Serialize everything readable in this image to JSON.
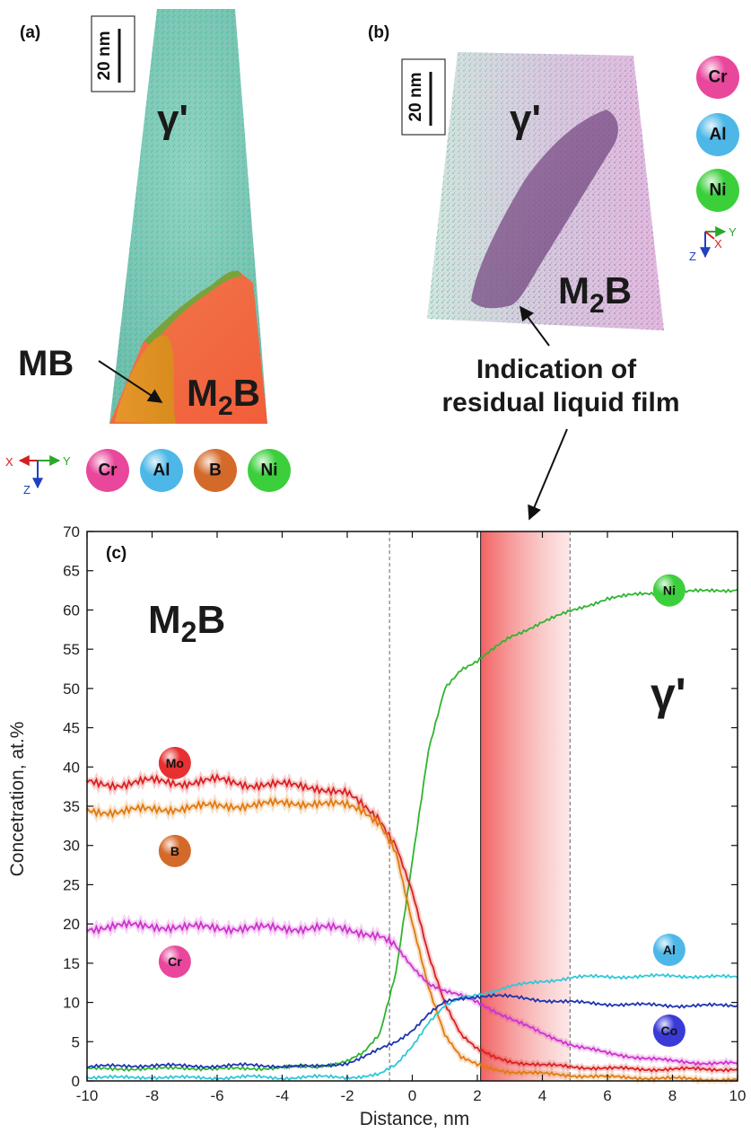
{
  "panels": {
    "a": {
      "label": "(a)",
      "scale": "20 nm",
      "phase_top": "γ'",
      "phase_mb": "MB",
      "phase_m2b": "M",
      "phase_m2b_sub": "2",
      "phase_m2b_end": "B",
      "legend": [
        {
          "label": "Cr",
          "color": "#e8479c"
        },
        {
          "label": "Al",
          "color": "#4db8e8"
        },
        {
          "label": "B",
          "color": "#d46a2a"
        },
        {
          "label": "Ni",
          "color": "#3ccf3c"
        }
      ],
      "axes": {
        "x": "X",
        "y": "Y",
        "z": "Z"
      }
    },
    "b": {
      "label": "(b)",
      "scale": "20 nm",
      "phase_top": "γ'",
      "phase_m2b": "M",
      "phase_m2b_sub": "2",
      "phase_m2b_end": "B",
      "annotation_line1": "Indication of",
      "annotation_line2": "residual liquid film",
      "legend": [
        {
          "label": "Cr",
          "color": "#e8479c"
        },
        {
          "label": "Al",
          "color": "#4db8e8"
        },
        {
          "label": "Ni",
          "color": "#3ccf3c"
        }
      ],
      "axes": {
        "x": "X",
        "y": "Y",
        "z": "Z"
      }
    }
  },
  "chart_data": {
    "type": "line",
    "panel_label": "(c)",
    "xlabel": "Distance, nm",
    "ylabel": "Concetration, at.%",
    "xlim": [
      -10,
      10
    ],
    "ylim": [
      0,
      70
    ],
    "xticks": [
      -10,
      -8,
      -6,
      -4,
      -2,
      0,
      2,
      4,
      6,
      8,
      10
    ],
    "yticks": [
      0,
      5,
      10,
      15,
      20,
      25,
      30,
      35,
      40,
      45,
      50,
      55,
      60,
      65,
      70
    ],
    "phase_left": "M",
    "phase_left_sub": "2",
    "phase_left_end": "B",
    "phase_right": "γ'",
    "dashed_lines_x": [
      -0.7,
      4.85
    ],
    "shaded_region_x": [
      2.1,
      4.85
    ],
    "x": [
      -10,
      -9,
      -8,
      -7,
      -6,
      -5,
      -4,
      -3,
      -2,
      -1.5,
      -1,
      -0.5,
      0,
      0.5,
      1,
      1.5,
      2,
      2.5,
      3,
      4,
      5,
      6,
      7,
      8,
      9,
      10
    ],
    "series": [
      {
        "name": "Ni",
        "color": "#2fb52f",
        "label_pos": [
          7.9,
          62.5
        ],
        "values": [
          1.5,
          1.6,
          1.5,
          1.7,
          1.5,
          1.6,
          1.7,
          1.8,
          2.5,
          3.5,
          6,
          14,
          28,
          42,
          50,
          52.5,
          53.5,
          55,
          56.5,
          58.5,
          60,
          61.5,
          62,
          62.3,
          62.4,
          62.6
        ]
      },
      {
        "name": "Mo",
        "color": "#d92020",
        "label_pos": [
          -7.3,
          40.5
        ],
        "values": [
          38,
          37.8,
          38.2,
          38,
          38.3,
          37.8,
          37.7,
          37.5,
          36.5,
          35,
          33.5,
          30,
          24,
          16,
          10,
          6,
          4,
          3,
          2.5,
          2,
          1.8,
          1.6,
          1.5,
          1.5,
          1.5,
          1.5
        ]
      },
      {
        "name": "B",
        "color": "#e07a10",
        "label_pos": [
          -7.3,
          29.3
        ],
        "values": [
          34.5,
          34.3,
          34.6,
          34.8,
          35,
          35.2,
          35.3,
          35.5,
          35,
          34.5,
          33,
          29,
          20,
          12,
          6,
          3,
          2,
          1.5,
          1.2,
          0.9,
          0.7,
          0.5,
          0.4,
          0.3,
          0.2,
          0.1
        ]
      },
      {
        "name": "Cr",
        "color": "#cc33cc",
        "label_pos": [
          -7.3,
          15.2
        ],
        "values": [
          19.5,
          19.7,
          19.8,
          19.5,
          19.6,
          19.4,
          19.5,
          19.5,
          19.3,
          19,
          18.5,
          17,
          14.5,
          12.5,
          11.5,
          10.8,
          10,
          9,
          8,
          6,
          4.5,
          3.5,
          3,
          2.5,
          2.3,
          2.2
        ]
      },
      {
        "name": "Al",
        "color": "#2ec8d8",
        "label_pos": [
          7.9,
          16.7
        ],
        "values": [
          0.5,
          0.4,
          0.5,
          0.4,
          0.4,
          0.5,
          0.4,
          0.5,
          0.5,
          0.6,
          0.8,
          2,
          4.5,
          7.5,
          9.5,
          10.5,
          11,
          11.5,
          12,
          12.7,
          13.2,
          13.3,
          13.3,
          13.4,
          13.3,
          13.2
        ]
      },
      {
        "name": "Co",
        "color": "#1c35b0",
        "label_pos": [
          7.9,
          6.4
        ],
        "values": [
          1.8,
          1.9,
          2,
          1.9,
          1.9,
          2,
          1.9,
          1.8,
          2.3,
          3,
          4,
          5,
          6.5,
          8.5,
          10,
          10.5,
          10.8,
          10.9,
          10.7,
          10.3,
          10,
          9.8,
          9.7,
          9.6,
          9.6,
          9.6
        ]
      }
    ],
    "annotation": "Indication of residual liquid film"
  }
}
